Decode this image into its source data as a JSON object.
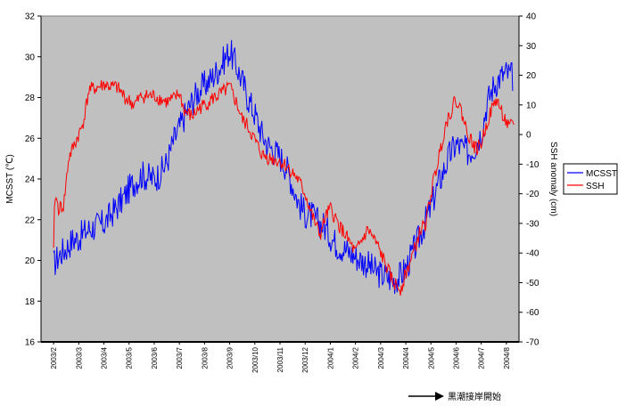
{
  "chart_data": {
    "type": "line",
    "title": "",
    "xlabel": "",
    "ylabel": "MCSST (℃)",
    "y2label": "SSH anomaly (cm)",
    "ylim": [
      16,
      32
    ],
    "y2lim": [
      -70,
      40
    ],
    "yticks": [
      "16",
      "18",
      "20",
      "22",
      "24",
      "26",
      "28",
      "30",
      "32"
    ],
    "y2ticks": [
      "-70",
      "-60",
      "-50",
      "-40",
      "-30",
      "-20",
      "-10",
      "0",
      "10",
      "20",
      "30",
      "40"
    ],
    "categories": [
      "2003/2",
      "2003/3",
      "2003/4",
      "2003/5",
      "2003/6",
      "2003/7",
      "2003/8",
      "2003/9",
      "2003/10",
      "2003/11",
      "2003/12",
      "2004/1",
      "2004/2",
      "2004/3",
      "2004/4",
      "2004/5",
      "2004/6",
      "2004/7",
      "2004/8"
    ],
    "grid": false,
    "legend_position": "right",
    "colors": {
      "plot_bg": "#c0c0c0",
      "mcsst": "#0000ff",
      "ssh": "#ff0000"
    },
    "series": [
      {
        "name": "MCSST",
        "axis": "left",
        "x": [
          0,
          0.25,
          0.5,
          0.75,
          1,
          1.25,
          1.5,
          1.75,
          2,
          2.25,
          2.5,
          2.75,
          3,
          3.25,
          3.5,
          3.75,
          4,
          4.25,
          4.5,
          4.75,
          5,
          5.25,
          5.5,
          5.75,
          6,
          6.25,
          6.5,
          6.75,
          7,
          7.25,
          7.5,
          7.75,
          8,
          8.25,
          8.5,
          8.75,
          9,
          9.25,
          9.5,
          9.75,
          10,
          10.25,
          10.5,
          10.75,
          11,
          11.25,
          11.5,
          11.75,
          12,
          12.25,
          12.5,
          12.75,
          13,
          13.25,
          13.5,
          13.75,
          14,
          14.25,
          14.5,
          14.75,
          15,
          15.25,
          15.5,
          15.75,
          16,
          16.25,
          16.5,
          16.75,
          17,
          17.25,
          17.5,
          17.75,
          18,
          18.25
        ],
        "values": [
          19.8,
          20.3,
          20.6,
          21.0,
          21.1,
          21.4,
          21.6,
          21.7,
          21.8,
          22.2,
          22.6,
          23.0,
          23.5,
          23.9,
          24.2,
          24.1,
          24.0,
          24.3,
          24.8,
          25.8,
          26.5,
          27.2,
          27.8,
          28.3,
          28.6,
          28.9,
          29.3,
          29.8,
          30.3,
          29.6,
          28.8,
          27.9,
          27.2,
          26.3,
          25.7,
          25.4,
          25.1,
          24.6,
          23.7,
          22.8,
          22.3,
          22.2,
          21.9,
          21.7,
          21.2,
          20.8,
          20.6,
          20.4,
          20.2,
          20.0,
          19.8,
          19.5,
          19.3,
          19.2,
          19.0,
          19.2,
          19.6,
          20.3,
          21.0,
          21.8,
          22.6,
          23.6,
          24.4,
          25.2,
          25.7,
          25.5,
          25.3,
          25.6,
          26.3,
          27.8,
          28.6,
          29.0,
          29.2,
          29.0
        ]
      },
      {
        "name": "SSH",
        "axis": "right",
        "x": [
          0,
          0.05,
          0.2,
          0.4,
          0.6,
          0.9,
          1.1,
          1.2,
          1.4,
          1.8,
          2.0,
          2.3,
          2.5,
          2.9,
          3.2,
          3.5,
          4.0,
          4.5,
          4.8,
          5.0,
          5.2,
          5.5,
          5.8,
          6.0,
          6.3,
          6.7,
          7.0,
          7.3,
          7.5,
          7.7,
          8.0,
          8.3,
          8.6,
          9.0,
          9.3,
          9.7,
          10.0,
          10.3,
          10.6,
          10.8,
          11.0,
          11.3,
          11.6,
          12.0,
          12.3,
          12.5,
          12.9,
          13.2,
          13.5,
          13.8,
          14.0,
          14.3,
          14.6,
          14.8,
          15.0,
          15.3,
          15.6,
          15.9,
          16.0,
          16.2,
          16.4,
          16.6,
          16.8,
          17.0,
          17.3,
          17.6,
          17.9,
          18.1,
          18.3
        ],
        "values": [
          -40,
          -20,
          -25,
          -24,
          -8,
          -2,
          2,
          5,
          15,
          16,
          17,
          16,
          16,
          12,
          10,
          13,
          13,
          11,
          12,
          14,
          8,
          6,
          9,
          10,
          12,
          14,
          16,
          10,
          5,
          3,
          -2,
          -7,
          -8,
          -9,
          -11,
          -15,
          -20,
          -28,
          -34,
          -28,
          -25,
          -30,
          -34,
          -40,
          -35,
          -32,
          -38,
          -44,
          -50,
          -52,
          -47,
          -40,
          -32,
          -30,
          -20,
          -8,
          4,
          10,
          12,
          8,
          2,
          -2,
          -5,
          -3,
          6,
          12,
          6,
          2,
          4
        ]
      }
    ]
  },
  "legend": {
    "items": [
      {
        "label": "MCSST",
        "color": "#0000ff"
      },
      {
        "label": "SSH",
        "color": "#ff0000"
      }
    ]
  },
  "annotation": {
    "text": "黒潮接岸開始"
  }
}
